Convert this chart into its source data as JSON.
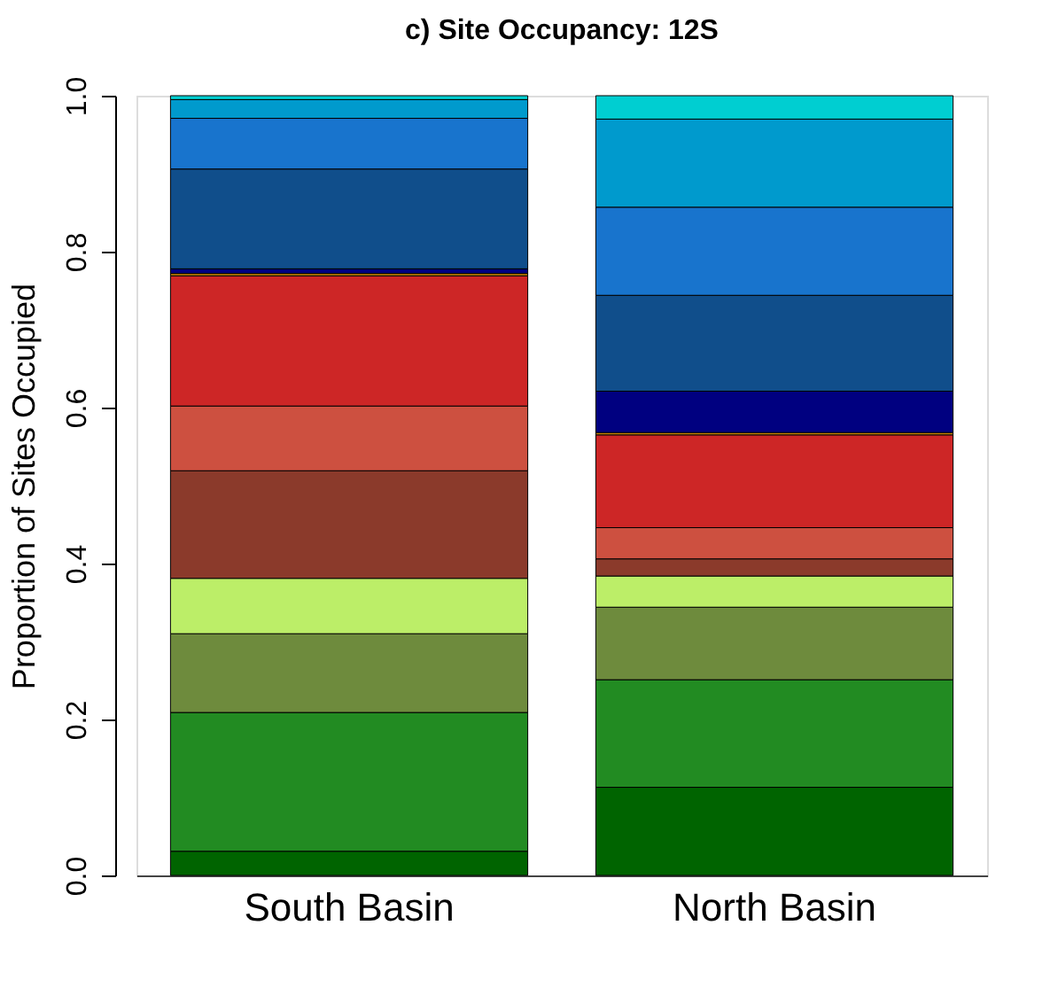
{
  "chart_data": {
    "type": "bar",
    "title": "c) Site Occupancy: 12S",
    "ylabel": "Proportion of Sites Occupied",
    "categories": [
      "South Basin",
      "North Basin"
    ],
    "stacked": true,
    "ylim": [
      0,
      1
    ],
    "yticks": [
      {
        "value": 0,
        "label": "0.0"
      },
      {
        "value": 0.2,
        "label": "0.2"
      },
      {
        "value": 0.4,
        "label": "0.4"
      },
      {
        "value": 0.6,
        "label": "0.6"
      },
      {
        "value": 0.8,
        "label": "0.8"
      },
      {
        "value": 1,
        "label": "1.0"
      }
    ],
    "grid": false,
    "legend": false,
    "series": [
      {
        "color": "#006400",
        "values": [
          0.031,
          0.113
        ]
      },
      {
        "color": "#228b22",
        "values": [
          0.178,
          0.138
        ]
      },
      {
        "color": "#6e8b3d",
        "values": [
          0.101,
          0.093
        ]
      },
      {
        "color": "#bcee68",
        "values": [
          0.071,
          0.04
        ]
      },
      {
        "color": "#8b3a2b",
        "values": [
          0.138,
          0.022
        ]
      },
      {
        "color": "#cd5040",
        "values": [
          0.083,
          0.04
        ]
      },
      {
        "color": "#cd2626",
        "values": [
          0.167,
          0.119
        ]
      },
      {
        "color": "#cd8500",
        "values": [
          0.003,
          0.003
        ]
      },
      {
        "color": "#000080",
        "values": [
          0.006,
          0.053
        ]
      },
      {
        "color": "#104e8b",
        "values": [
          0.128,
          0.123
        ]
      },
      {
        "color": "#1874cd",
        "values": [
          0.065,
          0.113
        ]
      },
      {
        "color": "#009acd",
        "values": [
          0.024,
          0.113
        ]
      },
      {
        "color": "#00ced1",
        "values": [
          0.005,
          0.03
        ]
      }
    ]
  }
}
